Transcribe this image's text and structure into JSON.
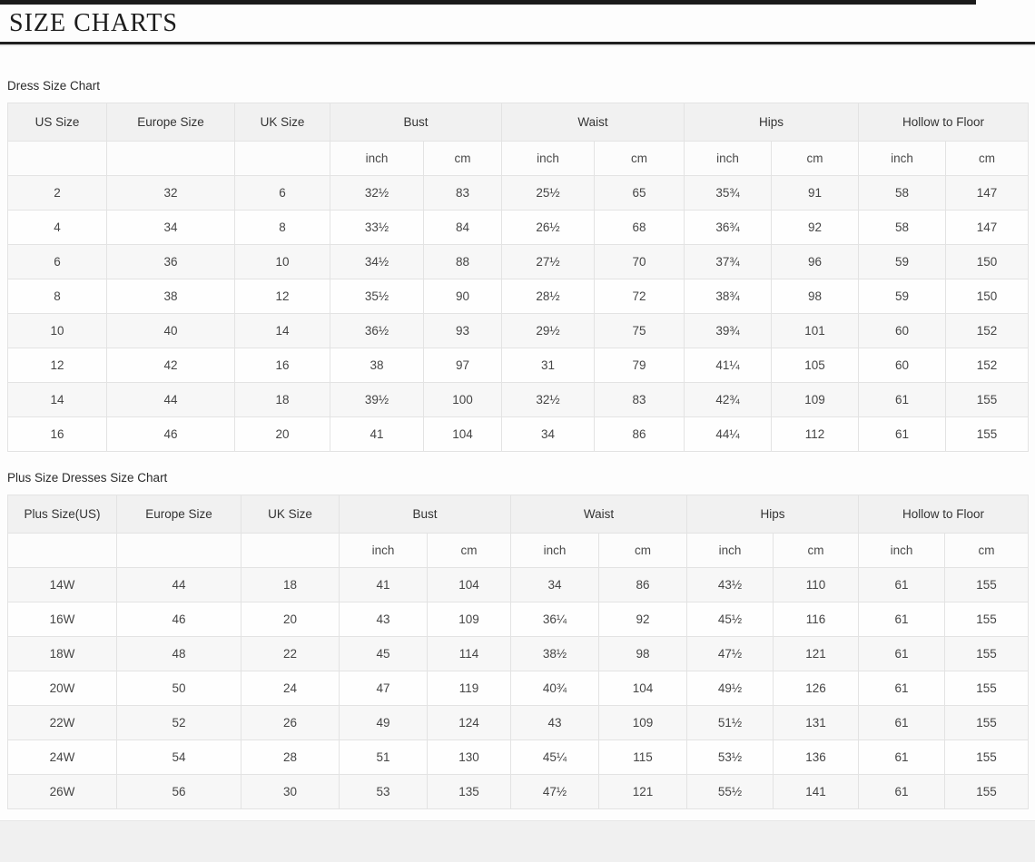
{
  "page": {
    "title": "SIZE CHARTS"
  },
  "colors": {
    "rule_dark": "#1f1f1f",
    "table_border": "#e3e3e3",
    "header_bg": "#f1f1f1",
    "stripe_bg": "#f7f7f7",
    "footer_bg": "#f0f0f0"
  },
  "tables": [
    {
      "label": "Dress Size Chart",
      "group_headers": [
        "US Size",
        "Europe Size",
        "UK Size",
        "Bust",
        "Waist",
        "Hips",
        "Hollow to Floor"
      ],
      "units": [
        "inch",
        "cm",
        "inch",
        "cm",
        "inch",
        "cm",
        "inch",
        "cm"
      ],
      "rows": [
        [
          "2",
          "32",
          "6",
          "32½",
          "83",
          "25½",
          "65",
          "35¾",
          "91",
          "58",
          "147"
        ],
        [
          "4",
          "34",
          "8",
          "33½",
          "84",
          "26½",
          "68",
          "36¾",
          "92",
          "58",
          "147"
        ],
        [
          "6",
          "36",
          "10",
          "34½",
          "88",
          "27½",
          "70",
          "37¾",
          "96",
          "59",
          "150"
        ],
        [
          "8",
          "38",
          "12",
          "35½",
          "90",
          "28½",
          "72",
          "38¾",
          "98",
          "59",
          "150"
        ],
        [
          "10",
          "40",
          "14",
          "36½",
          "93",
          "29½",
          "75",
          "39¾",
          "101",
          "60",
          "152"
        ],
        [
          "12",
          "42",
          "16",
          "38",
          "97",
          "31",
          "79",
          "41¼",
          "105",
          "60",
          "152"
        ],
        [
          "14",
          "44",
          "18",
          "39½",
          "100",
          "32½",
          "83",
          "42¾",
          "109",
          "61",
          "155"
        ],
        [
          "16",
          "46",
          "20",
          "41",
          "104",
          "34",
          "86",
          "44¼",
          "112",
          "61",
          "155"
        ]
      ]
    },
    {
      "label": "Plus Size Dresses Size Chart",
      "group_headers": [
        "Plus Size(US)",
        "Europe Size",
        "UK Size",
        "Bust",
        "Waist",
        "Hips",
        "Hollow to Floor"
      ],
      "units": [
        "inch",
        "cm",
        "inch",
        "cm",
        "inch",
        "cm",
        "inch",
        "cm"
      ],
      "rows": [
        [
          "14W",
          "44",
          "18",
          "41",
          "104",
          "34",
          "86",
          "43½",
          "110",
          "61",
          "155"
        ],
        [
          "16W",
          "46",
          "20",
          "43",
          "109",
          "36¼",
          "92",
          "45½",
          "116",
          "61",
          "155"
        ],
        [
          "18W",
          "48",
          "22",
          "45",
          "114",
          "38½",
          "98",
          "47½",
          "121",
          "61",
          "155"
        ],
        [
          "20W",
          "50",
          "24",
          "47",
          "119",
          "40¾",
          "104",
          "49½",
          "126",
          "61",
          "155"
        ],
        [
          "22W",
          "52",
          "26",
          "49",
          "124",
          "43",
          "109",
          "51½",
          "131",
          "61",
          "155"
        ],
        [
          "24W",
          "54",
          "28",
          "51",
          "130",
          "45¼",
          "115",
          "53½",
          "136",
          "61",
          "155"
        ],
        [
          "26W",
          "56",
          "30",
          "53",
          "135",
          "47½",
          "121",
          "55½",
          "141",
          "61",
          "155"
        ]
      ]
    }
  ]
}
